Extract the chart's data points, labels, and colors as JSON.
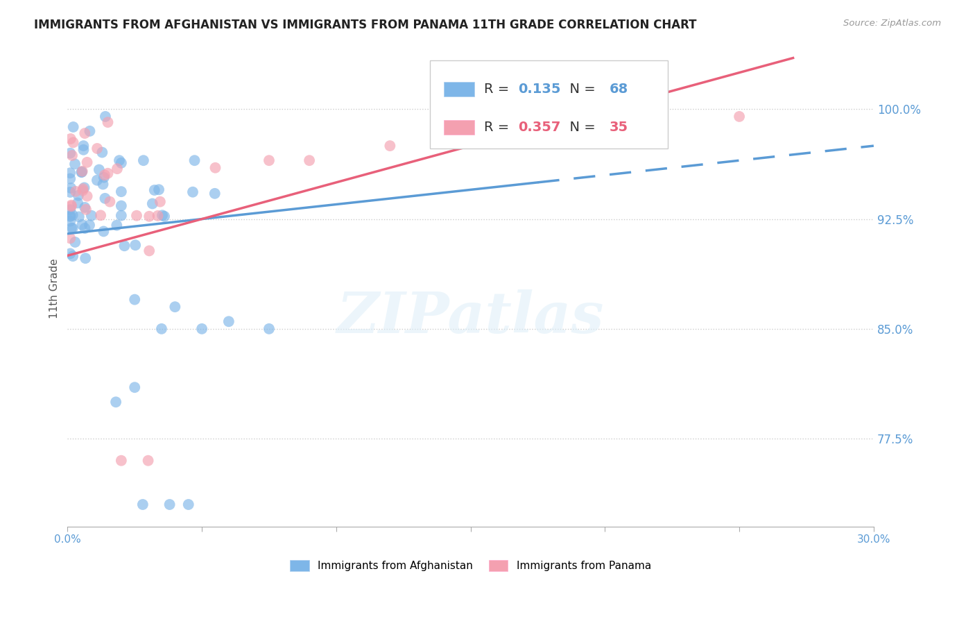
{
  "title": "IMMIGRANTS FROM AFGHANISTAN VS IMMIGRANTS FROM PANAMA 11TH GRADE CORRELATION CHART",
  "source": "Source: ZipAtlas.com",
  "ylabel": "11th Grade",
  "yticks": [
    "77.5%",
    "85.0%",
    "92.5%",
    "100.0%"
  ],
  "ytick_vals": [
    0.775,
    0.85,
    0.925,
    1.0
  ],
  "xlim": [
    0.0,
    0.3
  ],
  "ylim": [
    0.715,
    1.04
  ],
  "R_afghanistan": 0.135,
  "N_afghanistan": 68,
  "R_panama": 0.357,
  "N_panama": 35,
  "color_afghanistan": "#7EB6E8",
  "color_panama": "#F4A0B0",
  "color_trendline_afghanistan": "#5B9BD5",
  "color_trendline_panama": "#E8607A",
  "color_ytick": "#5B9BD5",
  "color_xtick": "#5B9BD5",
  "watermark_text": "ZIPatlas",
  "trendline_afg_x0": 0.0,
  "trendline_afg_y0": 0.915,
  "trendline_afg_x1": 0.3,
  "trendline_afg_y1": 0.975,
  "trendline_afg_split": 0.175,
  "trendline_pan_x0": 0.0,
  "trendline_pan_y0": 0.9,
  "trendline_pan_x1": 0.27,
  "trendline_pan_y1": 1.035,
  "bottom_legend_afg": "Immigrants from Afghanistan",
  "bottom_legend_pan": "Immigrants from Panama"
}
